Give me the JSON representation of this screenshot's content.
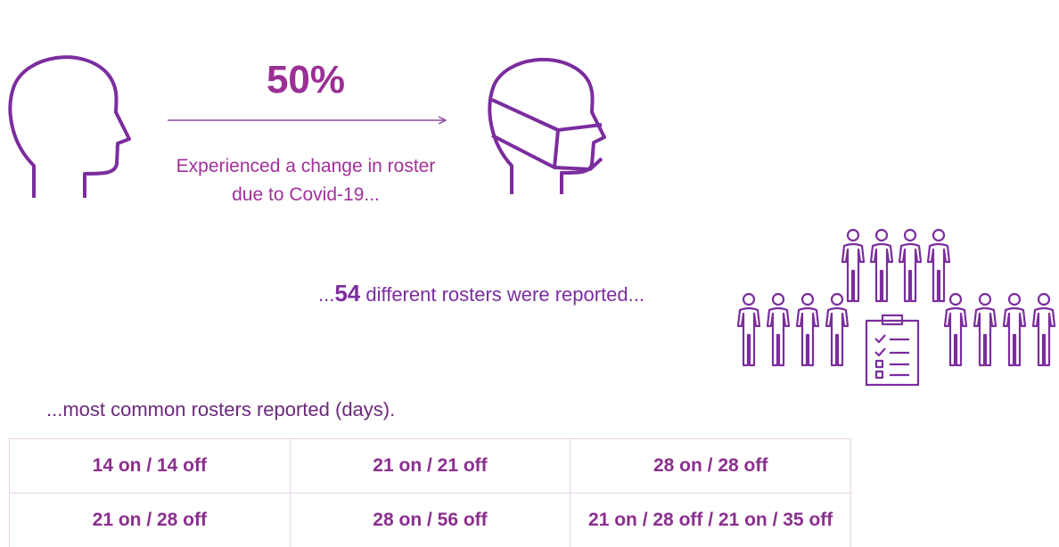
{
  "headline": "50%",
  "caption": [
    "Experienced a change in roster",
    "due to Covid-19..."
  ],
  "rosters_line": {
    "prefix": "...",
    "count": 54,
    "suffix": " different rosters were reported..."
  },
  "table_intro": "...most common rosters reported (days).",
  "table": {
    "rows": [
      [
        "14 on / 14 off",
        "21 on / 21 off",
        "28 on / 28 off"
      ],
      [
        "21 on / 28 off",
        "28 on / 56 off",
        "21 on / 28 off / 21 on / 35 off"
      ]
    ]
  }
}
